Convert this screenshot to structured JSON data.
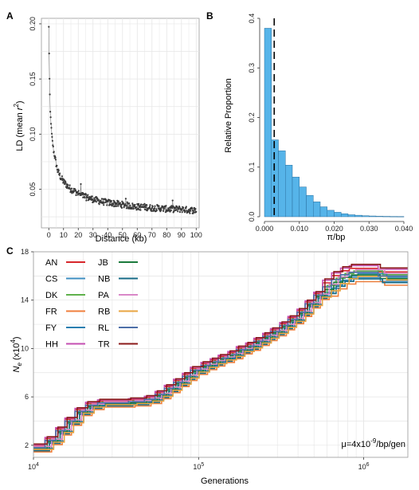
{
  "panels": {
    "a": "A",
    "b": "B",
    "c": "C"
  },
  "chart_data": [
    {
      "type": "scatter",
      "panel": "A",
      "xlabel": "Distance (kb)",
      "ylabel_pre": "LD (mean ",
      "ylabel_var": "r",
      "ylabel_sup": "2",
      "ylabel_post": ")",
      "xlim": [
        -5,
        102
      ],
      "ylim": [
        0.015,
        0.205
      ],
      "xticks": [
        0,
        10,
        20,
        30,
        40,
        50,
        60,
        70,
        80,
        90,
        100
      ],
      "yticks": [
        0.05,
        0.1,
        0.15,
        0.2
      ],
      "ytick_labels": [
        "0.05",
        "0.10",
        "0.15",
        "0.20"
      ],
      "grid": true,
      "x": [
        0,
        0.5,
        1,
        2,
        3,
        4,
        5,
        6,
        8,
        10,
        12,
        15,
        18,
        20,
        25,
        30,
        35,
        40,
        45,
        50,
        55,
        60,
        65,
        70,
        75,
        80,
        85,
        90,
        95,
        100
      ],
      "y": [
        0.197,
        0.15,
        0.12,
        0.1,
        0.087,
        0.08,
        0.073,
        0.067,
        0.061,
        0.057,
        0.054,
        0.05,
        0.048,
        0.046,
        0.043,
        0.041,
        0.039,
        0.038,
        0.037,
        0.036,
        0.035,
        0.034,
        0.034,
        0.033,
        0.033,
        0.032,
        0.032,
        0.032,
        0.031,
        0.031
      ],
      "point_color": "#3a3a3a"
    },
    {
      "type": "bar",
      "panel": "B",
      "xlabel": "π/bp",
      "ylabel": "Relative Proportion",
      "xlim": [
        0,
        0.04
      ],
      "ylim": [
        0,
        0.4
      ],
      "xticks": [
        0,
        0.01,
        0.02,
        0.03,
        0.04
      ],
      "xtick_labels": [
        "0.000",
        "0.010",
        "0.020",
        "0.030",
        "0.040"
      ],
      "yticks": [
        0,
        0.1,
        0.2,
        0.3,
        0.4
      ],
      "ytick_labels": [
        "0.0",
        "0.1",
        "0.2",
        "0.3",
        "0.4"
      ],
      "bin_width": 0.002,
      "bin_start": 0,
      "values": [
        0.38,
        0.155,
        0.133,
        0.104,
        0.08,
        0.06,
        0.043,
        0.03,
        0.02,
        0.013,
        0.009,
        0.006,
        0.004,
        0.003,
        0.002,
        0.0015,
        0.001,
        0.0008,
        0.0006,
        0.0005
      ],
      "mean_line_x": 0.0028,
      "bar_color": "#56b4e9",
      "bar_edge_color": "#2a6f9e",
      "grid": false
    },
    {
      "type": "line",
      "panel": "C",
      "xlabel": "Generations",
      "ylabel_var": "N",
      "ylabel_sub": "e",
      "ylabel_post": " (x10",
      "ylabel_sup": "4",
      "ylabel_end": ")",
      "xscale": "log",
      "xlim": [
        10000,
        1850000
      ],
      "ylim": [
        1,
        18
      ],
      "xticks": [
        10000,
        100000,
        1000000
      ],
      "xtick_base": [
        "10",
        "10",
        "10"
      ],
      "xtick_exp": [
        "4",
        "5",
        "6"
      ],
      "yticks": [
        2,
        6,
        10,
        14,
        18
      ],
      "ytick_labels": [
        "2",
        "6",
        "10",
        "14",
        "18"
      ],
      "grid": true,
      "annotation_pre": "μ=4x10",
      "annotation_sup": "-9",
      "annotation_post": "/bp/gen",
      "base_x": [
        10000,
        12500,
        14500,
        16500,
        19000,
        22000,
        26000,
        32000,
        40000,
        50000,
        58000,
        66000,
        75000,
        85000,
        95000,
        110000,
        125000,
        140000,
        160000,
        180000,
        205000,
        230000,
        260000,
        290000,
        330000,
        370000,
        420000,
        470000,
        530000,
        600000,
        680000,
        770000,
        870000,
        1000000,
        1300000,
        1850000
      ],
      "base_y": [
        1.8,
        2.4,
        3.2,
        4.0,
        4.8,
        5.3,
        5.5,
        5.5,
        5.6,
        5.8,
        6.2,
        6.7,
        7.2,
        7.7,
        8.2,
        8.6,
        8.9,
        9.2,
        9.5,
        9.9,
        10.2,
        10.6,
        11.0,
        11.4,
        11.9,
        12.4,
        13.0,
        13.7,
        14.4,
        15.1,
        15.7,
        16.1,
        16.3,
        16.3,
        16.0,
        16.0
      ],
      "series": [
        {
          "name": "AN",
          "color": "#d7262b",
          "offset": 0.15
        },
        {
          "name": "CS",
          "color": "#3f8fc1",
          "offset": -0.2
        },
        {
          "name": "DK",
          "color": "#5fb14c",
          "offset": 0.05
        },
        {
          "name": "FR",
          "color": "#f07f3c",
          "offset": -0.35
        },
        {
          "name": "FY",
          "color": "#2a7fb0",
          "offset": -0.05
        },
        {
          "name": "HH",
          "color": "#c44fb2",
          "offset": 0.25
        },
        {
          "name": "JB",
          "color": "#1b7a3c",
          "offset": -0.1
        },
        {
          "name": "NB",
          "color": "#166a86",
          "offset": -0.25
        },
        {
          "name": "PA",
          "color": "#d988c8",
          "offset": 0.1
        },
        {
          "name": "RB",
          "color": "#e8a542",
          "offset": -0.15
        },
        {
          "name": "RL",
          "color": "#4d6fa8",
          "offset": 0.0
        },
        {
          "name": "TR",
          "color": "#8b1a1a",
          "offset": 0.3
        }
      ]
    }
  ]
}
